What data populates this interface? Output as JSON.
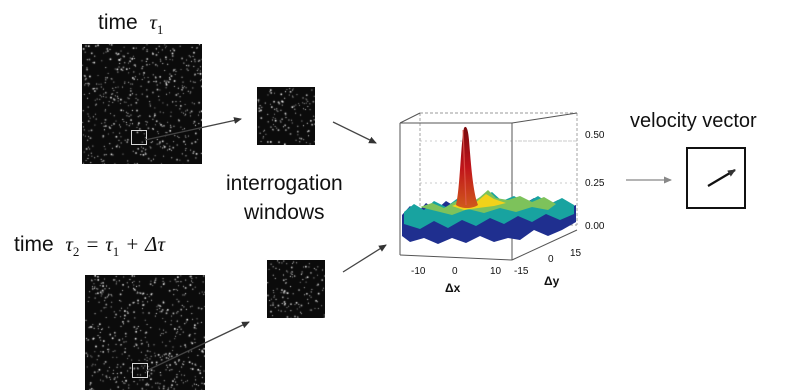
{
  "labels": {
    "time1_word": "time",
    "time1_symbol": "τ",
    "time1_sub": "1",
    "time2_word": "time",
    "time2_lhs_symbol": "τ",
    "time2_lhs_sub": "2",
    "time2_equals": "=",
    "time2_rhs_symbol": "τ",
    "time2_rhs_sub": "1",
    "time2_plus": "+",
    "time2_delta": "Δ",
    "time2_delta_symbol": "τ",
    "interrogation_line1": "interrogation",
    "interrogation_line2": "windows",
    "velocity_vector": "velocity vector"
  },
  "correlation_plot": {
    "z_ticks": [
      "0.50",
      "0.25",
      "0.00"
    ],
    "dx_ticks": [
      "-10",
      "0",
      "10"
    ],
    "dy_ticks": [
      "-15",
      "0",
      "15"
    ],
    "dx_label": "Δx",
    "dy_label": "Δy"
  },
  "colors": {
    "particle_background": "#0b0b0b",
    "peak": "#c0141b",
    "surface_low": "#1f2f8f",
    "surface_mid": "#18a3a0",
    "surface_high": "#f2d21a",
    "arrow": "#333333"
  }
}
